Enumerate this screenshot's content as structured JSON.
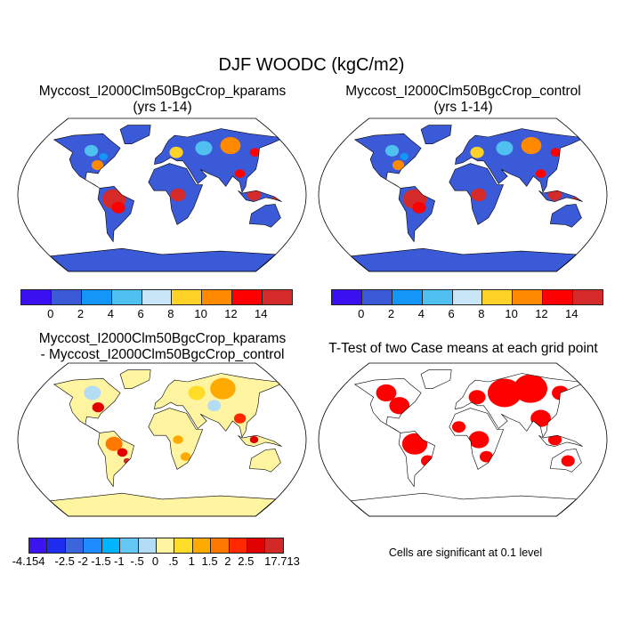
{
  "title": "DJF WOODC (kgC/m2)",
  "panels": [
    {
      "title_line1": "Myccost_I2000Clm50BgcCrop_kparams",
      "title_line2": "(yrs 1-14)"
    },
    {
      "title_line1": "Myccost_I2000Clm50BgcCrop_control",
      "title_line2": "(yrs 1-14)"
    },
    {
      "title_line1": "Myccost_I2000Clm50BgcCrop_kparams",
      "title_line2": "- Myccost_I2000Clm50BgcCrop_control"
    },
    {
      "title_line1": "T-Test of two Case means at each grid point"
    }
  ],
  "colorbar_main": {
    "colors": [
      "#3a10f0",
      "#3a5ad8",
      "#1496f8",
      "#50c0f0",
      "#c8e6f8",
      "#ffd228",
      "#ff8a00",
      "#ff0000",
      "#d42a2a"
    ],
    "labels": [
      "0",
      "2",
      "4",
      "6",
      "8",
      "10",
      "12",
      "14"
    ]
  },
  "colorbar_diff": {
    "colors": [
      "#3c14f0",
      "#1e2cf0",
      "#3c64dc",
      "#1e8cff",
      "#00b4ff",
      "#64c8f5",
      "#b4dcf5",
      "#fff5a0",
      "#ffdc28",
      "#ffaa00",
      "#ff7800",
      "#ff2800",
      "#e00000",
      "#d22828"
    ],
    "labels": [
      "-4.154",
      "",
      "-2.5",
      "-2",
      "-1.5",
      "-1",
      "-.5",
      "0",
      ".5",
      "1",
      "1.5",
      "2",
      "2.5",
      "",
      "17.713"
    ]
  },
  "caption": "Cells are significant at 0.1 level",
  "colors": {
    "land_base": "#3a5ad8",
    "diff_base": "#fff5a0",
    "significant": "#ff0000"
  }
}
